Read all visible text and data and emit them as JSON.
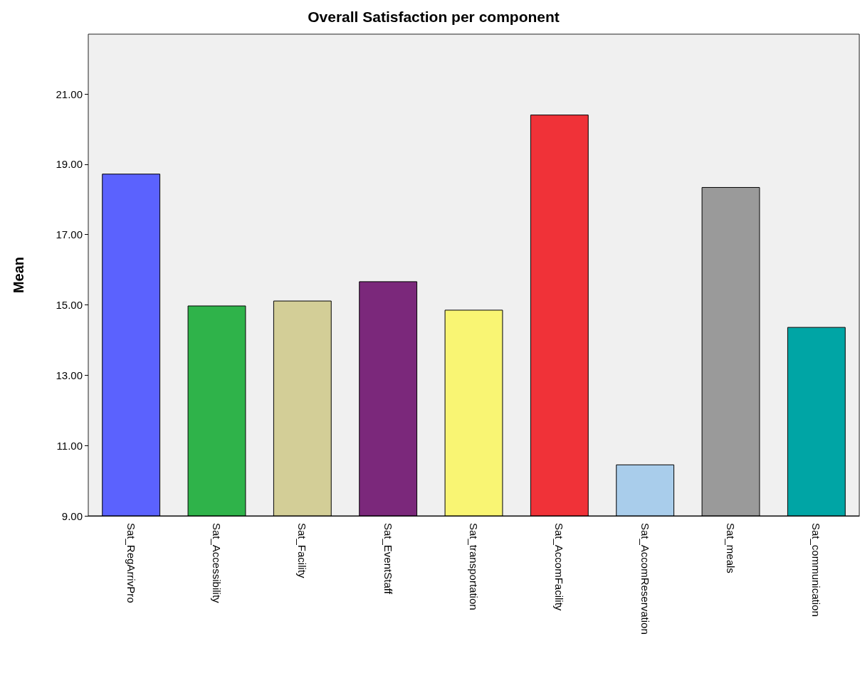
{
  "chart_data": {
    "type": "bar",
    "title": "Overall Satisfaction per component",
    "ylabel": "Mean",
    "categories": [
      "Sat_RegArrivPro",
      "Sat_Accessibility",
      "Sat_Facility",
      "Sat_EventStaff",
      "Sat_transportation",
      "Sat_AccomFacility",
      "Sat_AccomReservation",
      "Sat_meals",
      "Sat_communication"
    ],
    "values": [
      18.73,
      14.98,
      15.12,
      15.67,
      14.86,
      20.41,
      10.46,
      18.35,
      14.37
    ],
    "colors": [
      "#5b62fe",
      "#2fb34a",
      "#d3ce97",
      "#7b287b",
      "#f9f573",
      "#f03238",
      "#a9cdeb",
      "#9a9a9a",
      "#00a5a5"
    ],
    "ylim": [
      9,
      22.7
    ],
    "yticks": [
      {
        "value": 9,
        "label": "9.00"
      },
      {
        "value": 11,
        "label": "11.00"
      },
      {
        "value": 13,
        "label": "13.00"
      },
      {
        "value": 15,
        "label": "15.00"
      },
      {
        "value": 17,
        "label": "17.00"
      },
      {
        "value": 19,
        "label": "19.00"
      },
      {
        "value": 21,
        "label": "21.00"
      }
    ],
    "grid": false
  }
}
